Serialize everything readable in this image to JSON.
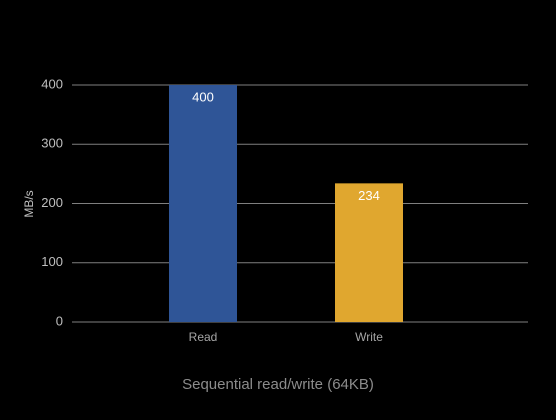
{
  "chart_data": {
    "type": "bar",
    "categories": [
      "Read",
      "Write"
    ],
    "values": [
      400,
      234
    ],
    "colors": [
      "#2f5597",
      "#e0a72f"
    ],
    "ylim": [
      0,
      400
    ],
    "yticks": [
      0,
      100,
      200,
      300,
      400
    ],
    "y_label": "MB/s",
    "x_label": "Sequential read/write (64KB)",
    "grid": true
  }
}
